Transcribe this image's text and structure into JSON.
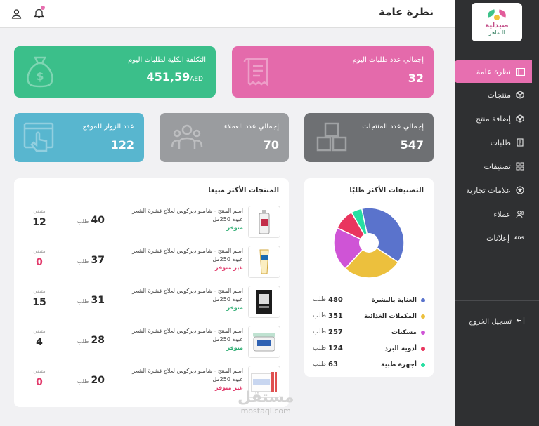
{
  "brand": {
    "logo_line1": "صيدلية",
    "logo_line2": "الـماهر"
  },
  "header": {
    "title": "نظرة عامة"
  },
  "sidebar": {
    "items": [
      {
        "label": "نظرة عامة",
        "icon": "overview-icon"
      },
      {
        "label": "منتجات",
        "icon": "box-icon"
      },
      {
        "label": "إضافة منتج",
        "icon": "add-box-icon"
      },
      {
        "label": "طلبات",
        "icon": "orders-icon"
      },
      {
        "label": "تصنيفات",
        "icon": "grid-icon"
      },
      {
        "label": "علامات تجارية",
        "icon": "brand-icon"
      },
      {
        "label": "عملاء",
        "icon": "users-icon"
      },
      {
        "label": "إعلانات",
        "icon": "ads-icon"
      }
    ],
    "ads_badge": "ADS",
    "logout": "تسجيل الخروج"
  },
  "stats": {
    "today_orders": {
      "label": "إجمالي عدد طلبات اليوم",
      "value": "32"
    },
    "today_cost": {
      "label": "التكلفة الكلية لطلبات اليوم",
      "value": "451,59",
      "currency": "AED"
    },
    "products": {
      "label": "إجمالي عدد المنتجات",
      "value": "547"
    },
    "customers": {
      "label": "إجمالي عدد العملاء",
      "value": "70"
    },
    "visitors": {
      "label": "عدد الزوار للموقع",
      "value": "122"
    }
  },
  "categories_panel": {
    "title": "التصنيفات الأكثر طلبًا",
    "unit": "طلب"
  },
  "chart_data": {
    "type": "pie",
    "title": "التصنيفات الأكثر طلبًا",
    "categories": [
      "العناية بالبشرة",
      "المكملات الغذائية",
      "مسكنات",
      "أدوية البرد",
      "أجهزة طبية"
    ],
    "values": [
      480,
      351,
      257,
      124,
      63
    ],
    "colors": [
      "#5a73cc",
      "#ecc03d",
      "#cf54d6",
      "#e9355e",
      "#27dfa2"
    ],
    "legend": "bottom"
  },
  "top_products_panel": {
    "title": "المنتجات الأكثر مبيعا",
    "orders_unit": "طلب",
    "stock_label": "متبقي",
    "products": [
      {
        "name": "اسم المنتج - شامبو ديركوس لعلاج قشرة الشعر",
        "size": "عبوة 250مل",
        "status": "متوفر",
        "available": true,
        "orders": "40",
        "stock": "12"
      },
      {
        "name": "اسم المنتج - شامبو ديركوس لعلاج قشرة الشعر",
        "size": "عبوة 250مل",
        "status": "غير متوفر",
        "available": false,
        "orders": "37",
        "stock": "0"
      },
      {
        "name": "اسم المنتج - شامبو ديركوس لعلاج قشرة الشعر",
        "size": "عبوة 250مل",
        "status": "متوفر",
        "available": true,
        "orders": "31",
        "stock": "15"
      },
      {
        "name": "اسم المنتج - شامبو ديركوس لعلاج قشرة الشعر",
        "size": "عبوة 250مل",
        "status": "متوفر",
        "available": true,
        "orders": "28",
        "stock": "4"
      },
      {
        "name": "اسم المنتج - شامبو ديركوس لعلاج قشرة الشعر",
        "size": "عبوة 250مل",
        "status": "غير متوفر",
        "available": false,
        "orders": "20",
        "stock": "0"
      }
    ]
  },
  "watermark": {
    "line1": "مستقل",
    "line2": "mostaql.com"
  }
}
